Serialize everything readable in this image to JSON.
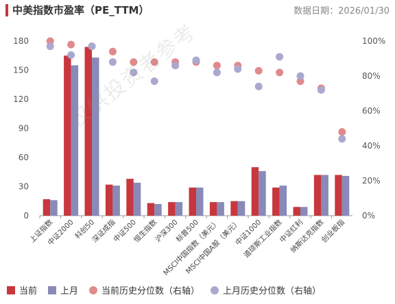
{
  "header": {
    "title": "中美指数市盈率（PE_TTM）",
    "date": "数据日期：2026/01/30"
  },
  "watermark": "仅供投资者参考",
  "legend": {
    "current": "当前",
    "last_month": "上月",
    "current_pct": "当前历史分位数（右轴）",
    "last_pct": "上月历史分位数（右轴）"
  },
  "colors": {
    "current": "#c8373d",
    "last_month": "#8a8ab8",
    "current_pct": "#e08a8c",
    "last_pct": "#a9a9d0"
  },
  "chart_data": {
    "type": "bar",
    "categories": [
      "上证指数",
      "中证2000",
      "科创50",
      "深证成指",
      "中证500",
      "恒生指数",
      "沪深300",
      "标普500",
      "MSCI中国指数（美元）",
      "MSCI中国A股（美元）",
      "中证1000",
      "道琼斯工业指数",
      "中证红利",
      "纳斯达克指数",
      "创业板指"
    ],
    "series": [
      {
        "name": "当前",
        "axis": "left",
        "values": [
          17,
          165,
          174,
          32,
          38,
          13,
          14,
          29,
          14,
          15,
          50,
          29,
          9,
          42,
          42
        ]
      },
      {
        "name": "上月",
        "axis": "left",
        "values": [
          16,
          155,
          163,
          31,
          34,
          12,
          14,
          29,
          14,
          15,
          46,
          31,
          9,
          42,
          41
        ]
      },
      {
        "name": "当前历史分位数（右轴）",
        "axis": "right",
        "values": [
          100,
          98,
          97,
          94,
          88,
          88,
          88,
          88,
          86,
          86,
          83,
          82,
          77,
          73,
          48
        ]
      },
      {
        "name": "上月历史分位数（右轴）",
        "axis": "right",
        "values": [
          97,
          92,
          97,
          88,
          82,
          77,
          86,
          89,
          82,
          84,
          74,
          91,
          80,
          72,
          44
        ]
      }
    ],
    "ylim": [
      0,
      180
    ],
    "yticks": [
      0,
      30,
      60,
      90,
      120,
      150,
      180
    ],
    "y2lim": [
      0,
      100
    ],
    "y2ticks": [
      "0%",
      "20%",
      "40%",
      "60%",
      "80%",
      "100%"
    ],
    "grid": false,
    "legend_position": "bottom"
  }
}
